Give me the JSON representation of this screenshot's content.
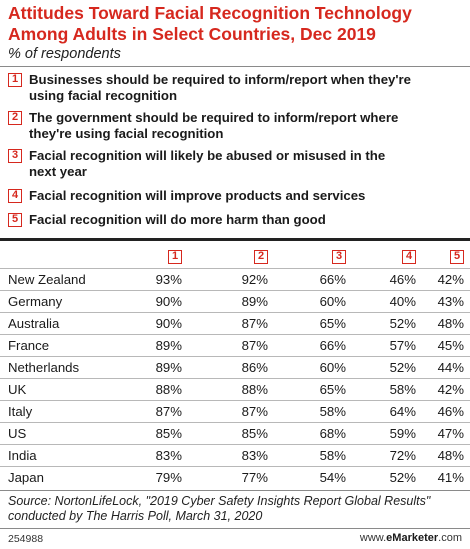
{
  "title_line1": "Attitudes Toward Facial Recognition Technology",
  "title_line2": "Among Adults in Select Countries, Dec 2019",
  "subtitle": "% of respondents",
  "legend": [
    {
      "num": "1",
      "line1": "Businesses should be required to inform/report when they're",
      "line2": "using facial recognition"
    },
    {
      "num": "2",
      "line1": "The government should be required to inform/report where",
      "line2": "they're using facial recognition"
    },
    {
      "num": "3",
      "line1": "Facial recognition will likely be abused or misused in the",
      "line2": "next year"
    },
    {
      "num": "4",
      "line1": "Facial recognition will improve products and services",
      "line2": ""
    },
    {
      "num": "5",
      "line1": "Facial recognition will do more harm than good",
      "line2": ""
    }
  ],
  "chart_data": {
    "type": "table",
    "title": "Attitudes Toward Facial Recognition Technology Among Adults in Select Countries, Dec 2019",
    "subtitle": "% of respondents",
    "columns": [
      "1",
      "2",
      "3",
      "4",
      "5"
    ],
    "rows": [
      {
        "country": "New Zealand",
        "values": [
          "93%",
          "92%",
          "66%",
          "46%",
          "42%"
        ]
      },
      {
        "country": "Germany",
        "values": [
          "90%",
          "89%",
          "60%",
          "40%",
          "43%"
        ]
      },
      {
        "country": "Australia",
        "values": [
          "90%",
          "87%",
          "65%",
          "52%",
          "48%"
        ]
      },
      {
        "country": "France",
        "values": [
          "89%",
          "87%",
          "66%",
          "57%",
          "45%"
        ]
      },
      {
        "country": "Netherlands",
        "values": [
          "89%",
          "86%",
          "60%",
          "52%",
          "44%"
        ]
      },
      {
        "country": "UK",
        "values": [
          "88%",
          "88%",
          "65%",
          "58%",
          "42%"
        ]
      },
      {
        "country": "Italy",
        "values": [
          "87%",
          "87%",
          "58%",
          "64%",
          "46%"
        ]
      },
      {
        "country": "US",
        "values": [
          "85%",
          "85%",
          "68%",
          "59%",
          "47%"
        ]
      },
      {
        "country": "India",
        "values": [
          "83%",
          "83%",
          "58%",
          "72%",
          "48%"
        ]
      },
      {
        "country": "Japan",
        "values": [
          "79%",
          "77%",
          "54%",
          "52%",
          "41%"
        ]
      }
    ]
  },
  "source_line1": "Source: NortonLifeLock, \"2019 Cyber Safety Insights Report Global Results\"",
  "source_line2": "conducted by The Harris Poll, March 31, 2020",
  "chart_id": "254988",
  "brand_prefix": "www.",
  "brand_name": "eMarketer",
  "brand_suffix": ".com",
  "accent_color": "#d6281e"
}
